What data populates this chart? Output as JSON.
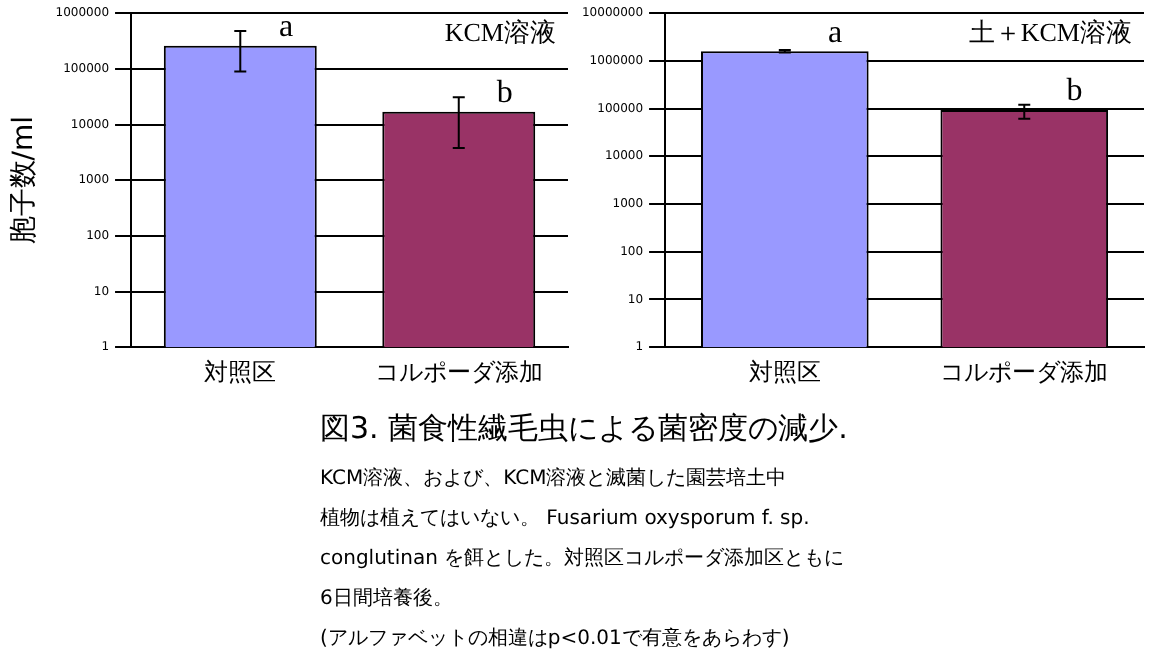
{
  "chart_data": [
    {
      "type": "bar",
      "ylabel": "胞子数/ml",
      "categories": [
        "対照区",
        "コルポーダ添加"
      ],
      "values": [
        260000,
        17000
      ],
      "colors": [
        "#9999ff",
        "#993366"
      ],
      "errors": [
        [
          90000,
          480000
        ],
        [
          3800,
          31000
        ]
      ],
      "log": "y",
      "ylim": [
        1,
        1000000
      ],
      "yticks": [
        1,
        10,
        100,
        1000,
        10000,
        100000,
        1000000
      ],
      "grid": "y",
      "annotations": [
        "KCM溶液",
        {
          "text": "a",
          "x": "対照区",
          "y": 260000
        },
        {
          "text": "b",
          "x": "コルポーダ添加",
          "y": 17000
        }
      ]
    },
    {
      "type": "bar",
      "categories": [
        "対照区",
        "コルポーダ添加"
      ],
      "values": [
        1600000,
        94000
      ],
      "colors": [
        "#9999ff",
        "#993366"
      ],
      "errors": [
        [
          1500000,
          1700000
        ],
        [
          61000,
          120000
        ]
      ],
      "log": "y",
      "ylim": [
        1,
        10000000
      ],
      "yticks": [
        1,
        10,
        100,
        1000,
        10000,
        100000,
        1000000,
        10000000
      ],
      "grid": "y",
      "title": "図3. 菌食性繊毛虫による菌密度の減少.",
      "annotations": [
        "土＋KCM溶液",
        {
          "text": "a",
          "x": "対照区",
          "y": 1600000
        },
        {
          "text": "b",
          "x": "コルポーダ添加",
          "y": 94000
        },
        "KCM溶液、および、KCM溶液と滅菌した園芸培土中",
        "植物は植えてはいない。 Fusarium oxysporum f. sp.",
        "conglutinan を餌とした。対照区コルポーダ添加区ともに",
        "6日間培養後。",
        "(アルファベットの相違はp<0.01で有意をあらわす)"
      ]
    }
  ]
}
